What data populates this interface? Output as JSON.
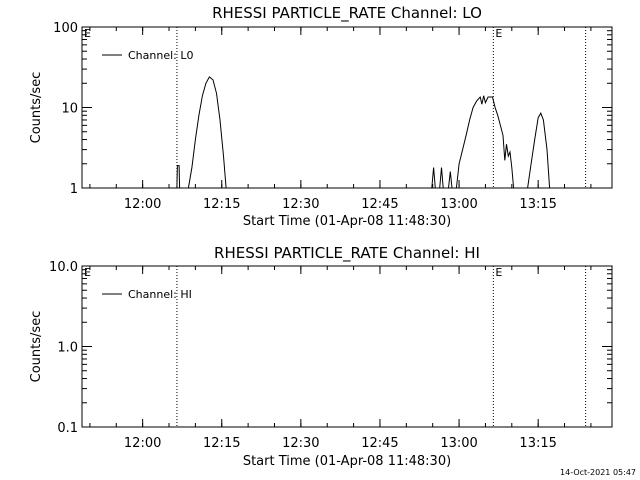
{
  "footer": {
    "timestamp": "14-Oct-2021 05:47"
  },
  "chart_data": [
    {
      "type": "line",
      "title": "RHESSI PARTICLE_RATE Channel: LO",
      "xlabel": "Start Time (01-Apr-08 11:48:30)",
      "ylabel": "Counts/sec",
      "yscale": "log",
      "xlim": [
        "11:48:30",
        "13:29:00"
      ],
      "ylim": [
        1,
        100
      ],
      "xticks": [
        "12:00",
        "12:15",
        "12:30",
        "12:45",
        "13:00",
        "13:15"
      ],
      "yticks": [
        "1",
        "10",
        "100"
      ],
      "flag_lines": [
        "12:06:30",
        "13:06:30",
        "13:24:00"
      ],
      "flag_labels": [
        {
          "text": "E",
          "x": "11:48:30"
        },
        {
          "text": "E",
          "x": "13:06:30"
        }
      ],
      "legend": {
        "position": "top-left",
        "entries": [
          "Channel: L0"
        ]
      },
      "series": [
        {
          "name": "Channel: L0",
          "segments": [
            [
              [
                "12:06:30",
                1
              ],
              [
                "12:06:35",
                1.9
              ],
              [
                "12:06:55",
                1.9
              ],
              [
                "12:07:00",
                1
              ]
            ],
            [
              [
                "12:08:40",
                1
              ],
              [
                "12:09:20",
                1.8
              ],
              [
                "12:10:00",
                4
              ],
              [
                "12:10:40",
                8
              ],
              [
                "12:11:20",
                14
              ],
              [
                "12:12:00",
                20
              ],
              [
                "12:12:40",
                24
              ],
              [
                "12:13:20",
                22
              ],
              [
                "12:14:00",
                15
              ],
              [
                "12:14:40",
                7
              ],
              [
                "12:15:20",
                2.5
              ],
              [
                "12:15:50",
                1
              ]
            ],
            [
              [
                "12:54:50",
                1
              ],
              [
                "12:55:10",
                1.8
              ],
              [
                "12:55:30",
                1
              ]
            ],
            [
              [
                "12:56:20",
                1
              ],
              [
                "12:56:40",
                1.8
              ],
              [
                "12:57:00",
                1
              ]
            ],
            [
              [
                "12:58:00",
                1
              ],
              [
                "12:58:20",
                1.6
              ],
              [
                "12:58:40",
                1
              ]
            ],
            [
              [
                "12:59:30",
                1
              ],
              [
                "13:00:00",
                2
              ],
              [
                "13:00:40",
                3
              ],
              [
                "13:01:20",
                4.5
              ],
              [
                "13:02:00",
                7
              ],
              [
                "13:02:40",
                10
              ],
              [
                "13:03:20",
                12
              ],
              [
                "13:04:00",
                13.5
              ],
              [
                "13:04:20",
                11
              ],
              [
                "13:04:40",
                14
              ],
              [
                "13:05:00",
                11.5
              ],
              [
                "13:05:30",
                13.5
              ],
              [
                "13:06:20",
                13.5
              ],
              [
                "13:06:50",
                10
              ],
              [
                "13:07:20",
                8
              ],
              [
                "13:07:50",
                6
              ],
              [
                "13:08:20",
                4.5
              ],
              [
                "13:08:40",
                2.2
              ],
              [
                "13:09:00",
                3.5
              ],
              [
                "13:09:20",
                2.5
              ],
              [
                "13:09:40",
                2.8
              ],
              [
                "13:10:00",
                1.8
              ],
              [
                "13:10:20",
                1
              ]
            ],
            [
              [
                "13:13:00",
                1
              ],
              [
                "13:13:40",
                2
              ],
              [
                "13:14:20",
                4
              ],
              [
                "13:15:00",
                7.5
              ],
              [
                "13:15:30",
                8.5
              ],
              [
                "13:16:00",
                7
              ],
              [
                "13:16:40",
                3
              ],
              [
                "13:17:10",
                1
              ]
            ]
          ]
        }
      ]
    },
    {
      "type": "line",
      "title": "RHESSI PARTICLE_RATE Channel: HI",
      "xlabel": "Start Time (01-Apr-08 11:48:30)",
      "ylabel": "Counts/sec",
      "yscale": "log",
      "xlim": [
        "11:48:30",
        "13:29:00"
      ],
      "ylim": [
        0.1,
        10
      ],
      "xticks": [
        "12:00",
        "12:15",
        "12:30",
        "12:45",
        "13:00",
        "13:15"
      ],
      "yticks": [
        "0.1",
        "1.0",
        "10.0"
      ],
      "flag_lines": [
        "12:06:30",
        "13:06:30",
        "13:24:00"
      ],
      "flag_labels": [
        {
          "text": "E",
          "x": "11:48:30"
        },
        {
          "text": "E",
          "x": "13:06:30"
        }
      ],
      "legend": {
        "position": "top-left",
        "entries": [
          "Channel: HI"
        ]
      },
      "series": [
        {
          "name": "Channel: HI",
          "segments": []
        }
      ]
    }
  ]
}
